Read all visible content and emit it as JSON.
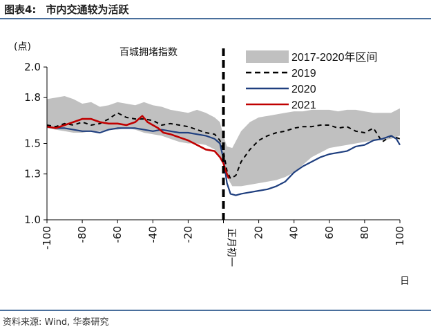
{
  "header": {
    "label": "图表4:",
    "title": "市内交通较为活跃"
  },
  "source": "资料来源: Wind, 华泰研究",
  "colors": {
    "band": "#c0c0c0",
    "s2019": "#000000",
    "s2020": "#1f3f7f",
    "s2021": "#c00000",
    "rule": "#4a6f9c"
  },
  "chart_data": {
    "type": "line",
    "title": "百城拥堵指数",
    "ylabel": "(点)",
    "xlabel": "日",
    "xlim": [
      -100,
      100
    ],
    "ylim": [
      1.0,
      2.0
    ],
    "xticks": [
      -100,
      -80,
      -60,
      -40,
      -20,
      0,
      20,
      40,
      60,
      80,
      100
    ],
    "yticks": [
      1.0,
      1.3,
      1.5,
      1.8,
      2.0
    ],
    "center_label": "正月初一",
    "band": {
      "name": "2017-2020年区间",
      "x": [
        -100,
        -95,
        -90,
        -85,
        -80,
        -75,
        -70,
        -65,
        -60,
        -55,
        -50,
        -45,
        -40,
        -35,
        -30,
        -25,
        -20,
        -15,
        -10,
        -5,
        -2,
        0,
        2,
        5,
        10,
        15,
        20,
        25,
        30,
        35,
        40,
        45,
        50,
        55,
        60,
        65,
        70,
        75,
        80,
        85,
        90,
        95,
        100
      ],
      "upper": [
        1.79,
        1.8,
        1.81,
        1.79,
        1.76,
        1.77,
        1.74,
        1.75,
        1.77,
        1.76,
        1.75,
        1.77,
        1.75,
        1.74,
        1.72,
        1.71,
        1.7,
        1.72,
        1.7,
        1.67,
        1.64,
        1.55,
        1.48,
        1.47,
        1.58,
        1.64,
        1.67,
        1.68,
        1.69,
        1.7,
        1.71,
        1.71,
        1.72,
        1.72,
        1.72,
        1.71,
        1.72,
        1.72,
        1.71,
        1.7,
        1.7,
        1.7,
        1.73
      ],
      "lower": [
        1.6,
        1.59,
        1.58,
        1.57,
        1.57,
        1.58,
        1.58,
        1.59,
        1.59,
        1.6,
        1.59,
        1.57,
        1.56,
        1.55,
        1.53,
        1.51,
        1.5,
        1.5,
        1.49,
        1.46,
        1.42,
        1.35,
        1.28,
        1.22,
        1.22,
        1.23,
        1.24,
        1.25,
        1.26,
        1.28,
        1.31,
        1.36,
        1.41,
        1.44,
        1.47,
        1.48,
        1.49,
        1.5,
        1.51,
        1.52,
        1.52,
        1.53,
        1.55
      ]
    },
    "series": [
      {
        "name": "2019",
        "x": [
          -100,
          -95,
          -90,
          -85,
          -80,
          -75,
          -70,
          -65,
          -60,
          -55,
          -50,
          -45,
          -40,
          -35,
          -30,
          -25,
          -20,
          -15,
          -10,
          -5,
          -2,
          0,
          2,
          4,
          7,
          10,
          15,
          20,
          25,
          30,
          35,
          40,
          45,
          50,
          55,
          60,
          65,
          70,
          75,
          80,
          85,
          90,
          95,
          100
        ],
        "values": [
          1.62,
          1.61,
          1.63,
          1.62,
          1.64,
          1.62,
          1.63,
          1.66,
          1.7,
          1.67,
          1.66,
          1.66,
          1.65,
          1.62,
          1.63,
          1.62,
          1.61,
          1.59,
          1.57,
          1.56,
          1.52,
          1.45,
          1.32,
          1.27,
          1.29,
          1.38,
          1.46,
          1.52,
          1.55,
          1.57,
          1.58,
          1.6,
          1.61,
          1.61,
          1.62,
          1.62,
          1.6,
          1.61,
          1.58,
          1.57,
          1.6,
          1.51,
          1.55,
          1.53
        ]
      },
      {
        "name": "2020",
        "x": [
          -100,
          -95,
          -90,
          -85,
          -80,
          -75,
          -70,
          -65,
          -60,
          -55,
          -50,
          -45,
          -40,
          -35,
          -30,
          -25,
          -20,
          -15,
          -10,
          -5,
          -2,
          0,
          2,
          4,
          7,
          10,
          15,
          20,
          25,
          30,
          35,
          40,
          45,
          50,
          55,
          60,
          65,
          70,
          75,
          80,
          85,
          90,
          95,
          98,
          100
        ],
        "values": [
          1.61,
          1.6,
          1.6,
          1.59,
          1.58,
          1.58,
          1.57,
          1.59,
          1.6,
          1.6,
          1.6,
          1.59,
          1.58,
          1.59,
          1.58,
          1.57,
          1.57,
          1.56,
          1.55,
          1.53,
          1.5,
          1.4,
          1.24,
          1.17,
          1.16,
          1.17,
          1.18,
          1.19,
          1.2,
          1.22,
          1.25,
          1.31,
          1.35,
          1.38,
          1.41,
          1.43,
          1.44,
          1.45,
          1.48,
          1.49,
          1.52,
          1.53,
          1.55,
          1.53,
          1.49
        ]
      },
      {
        "name": "2021",
        "x": [
          -100,
          -95,
          -90,
          -85,
          -80,
          -75,
          -70,
          -65,
          -60,
          -55,
          -50,
          -46,
          -43,
          -40,
          -37,
          -34,
          -30,
          -25,
          -20,
          -15,
          -10,
          -5,
          -2,
          0,
          1,
          2,
          3
        ],
        "values": [
          1.61,
          1.6,
          1.62,
          1.64,
          1.66,
          1.66,
          1.64,
          1.63,
          1.63,
          1.62,
          1.64,
          1.68,
          1.64,
          1.62,
          1.6,
          1.57,
          1.56,
          1.54,
          1.52,
          1.49,
          1.46,
          1.45,
          1.41,
          1.37,
          1.33,
          1.3,
          1.27
        ]
      }
    ],
    "legend": "top-right"
  }
}
